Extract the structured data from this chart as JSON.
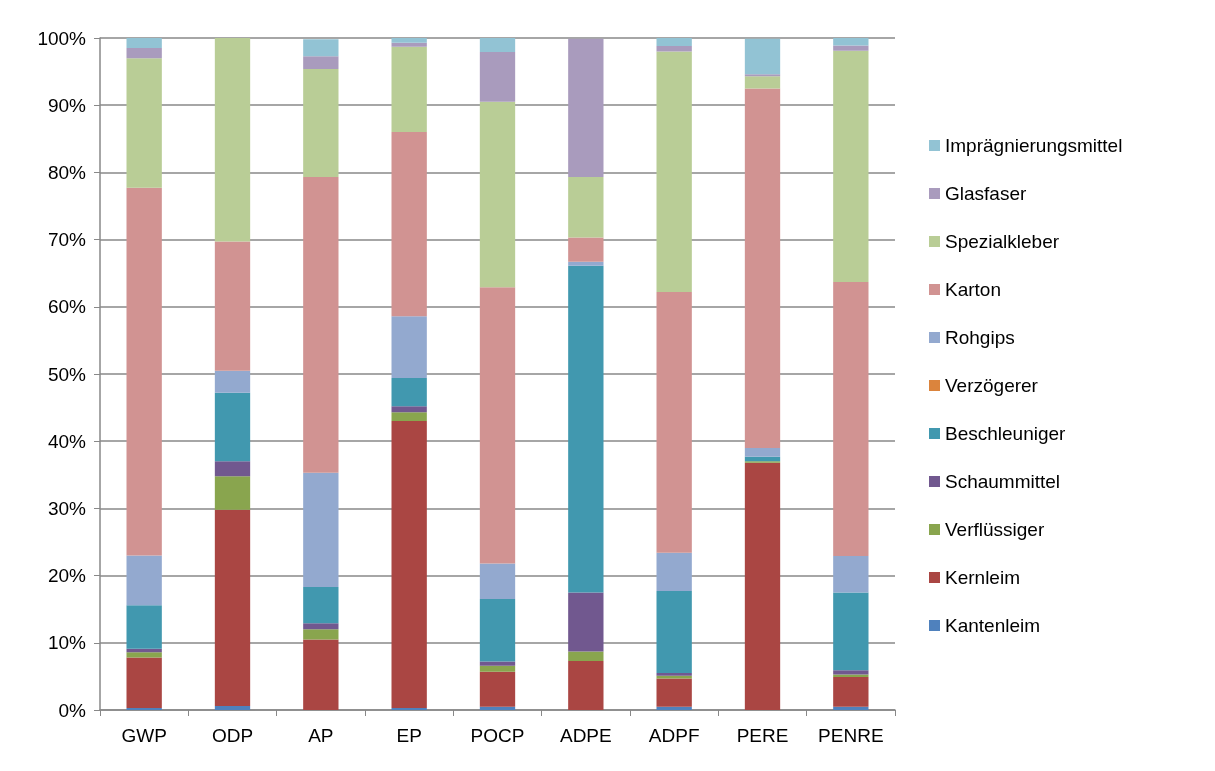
{
  "chart_data": {
    "type": "bar",
    "stacked": true,
    "categories": [
      "GWP",
      "ODP",
      "AP",
      "EP",
      "POCP",
      "ADPE",
      "ADPF",
      "PERE",
      "PENRE"
    ],
    "series": [
      {
        "name": "Kantenleim",
        "color": "#4f81bd",
        "values": [
          0.3,
          0.6,
          null,
          0.3,
          0.5,
          null,
          0.5,
          null,
          0.5
        ]
      },
      {
        "name": "Kernleim",
        "color": "#aa4643",
        "values": [
          7.5,
          29.2,
          10.5,
          42.7,
          5.2,
          7.3,
          4.2,
          36.8,
          4.4
        ]
      },
      {
        "name": "Verflüssiger",
        "color": "#89a54e",
        "values": [
          0.8,
          5.0,
          1.5,
          1.3,
          0.9,
          1.4,
          0.4,
          0.2,
          0.4
        ]
      },
      {
        "name": "Schaummittel",
        "color": "#71588f",
        "values": [
          0.5,
          2.2,
          0.9,
          0.9,
          0.6,
          8.8,
          0.4,
          0,
          0.6
        ]
      },
      {
        "name": "Beschleuniger",
        "color": "#4198af",
        "values": [
          6.5,
          10.2,
          5.4,
          4.2,
          9.3,
          48.6,
          12.2,
          0.7,
          11.6
        ]
      },
      {
        "name": "Verzögerer",
        "color": "#db843d",
        "values": [
          0,
          0,
          0,
          0,
          0,
          0,
          0,
          0,
          0
        ]
      },
      {
        "name": "Rohgips",
        "color": "#93a9cf",
        "values": [
          7.4,
          3.3,
          17.0,
          9.2,
          5.3,
          0.6,
          5.7,
          1.3,
          5.4
        ]
      },
      {
        "name": "Karton",
        "color": "#d19392",
        "values": [
          54.7,
          19.2,
          44.0,
          27.4,
          41.1,
          3.6,
          38.8,
          53.5,
          40.8
        ]
      },
      {
        "name": "Spezialkleber",
        "color": "#b9cd96",
        "values": [
          19.3,
          30.3,
          16.1,
          12.7,
          27.6,
          9.0,
          35.8,
          1.8,
          34.4
        ]
      },
      {
        "name": "Glasfaser",
        "color": "#a99bbd",
        "values": [
          1.5,
          0,
          1.9,
          0.6,
          7.4,
          20.6,
          0.8,
          0.3,
          0.8
        ]
      },
      {
        "name": "Imprägnierungsmittel",
        "color": "#92c3d4",
        "values": [
          1.5,
          0,
          2.5,
          0.7,
          2.1,
          0,
          1.2,
          5.3,
          1.1
        ]
      }
    ],
    "ylim": [
      0,
      100
    ],
    "yticks": [
      {
        "value": 0,
        "label": "0%"
      },
      {
        "value": 10,
        "label": "10%"
      },
      {
        "value": 20,
        "label": "20%"
      },
      {
        "value": 30,
        "label": "30%"
      },
      {
        "value": 40,
        "label": "40%"
      },
      {
        "value": 50,
        "label": "50%"
      },
      {
        "value": 60,
        "label": "60%"
      },
      {
        "value": 70,
        "label": "70%"
      },
      {
        "value": 80,
        "label": "80%"
      },
      {
        "value": 90,
        "label": "90%"
      },
      {
        "value": 100,
        "label": "100%"
      }
    ],
    "grid": "y",
    "legend": "right"
  }
}
